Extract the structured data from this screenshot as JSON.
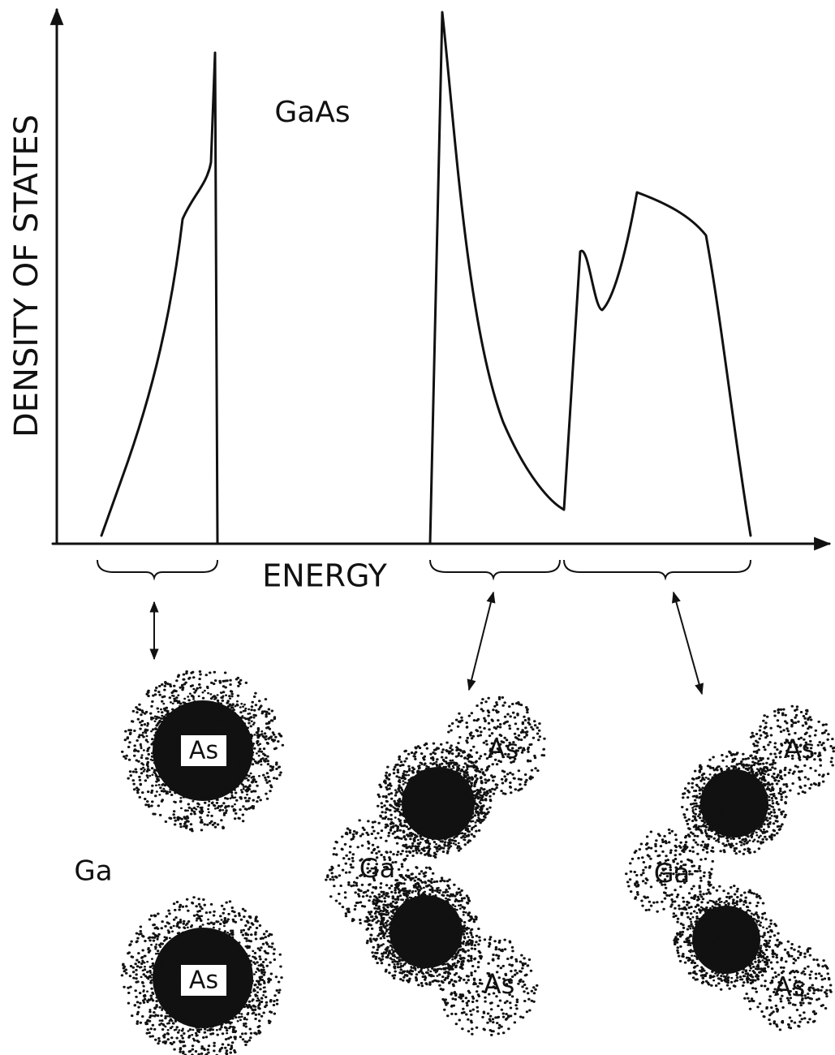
{
  "title": "GaAs",
  "y_axis_label": "DENSITY OF STATES",
  "x_axis_label": "ENERGY",
  "panels": [
    {
      "atoms": [
        "As",
        "Ga",
        "As"
      ]
    },
    {
      "atoms": [
        "As",
        "Ga",
        "As"
      ]
    },
    {
      "atoms": [
        "As",
        "Ga",
        "As"
      ]
    }
  ]
}
